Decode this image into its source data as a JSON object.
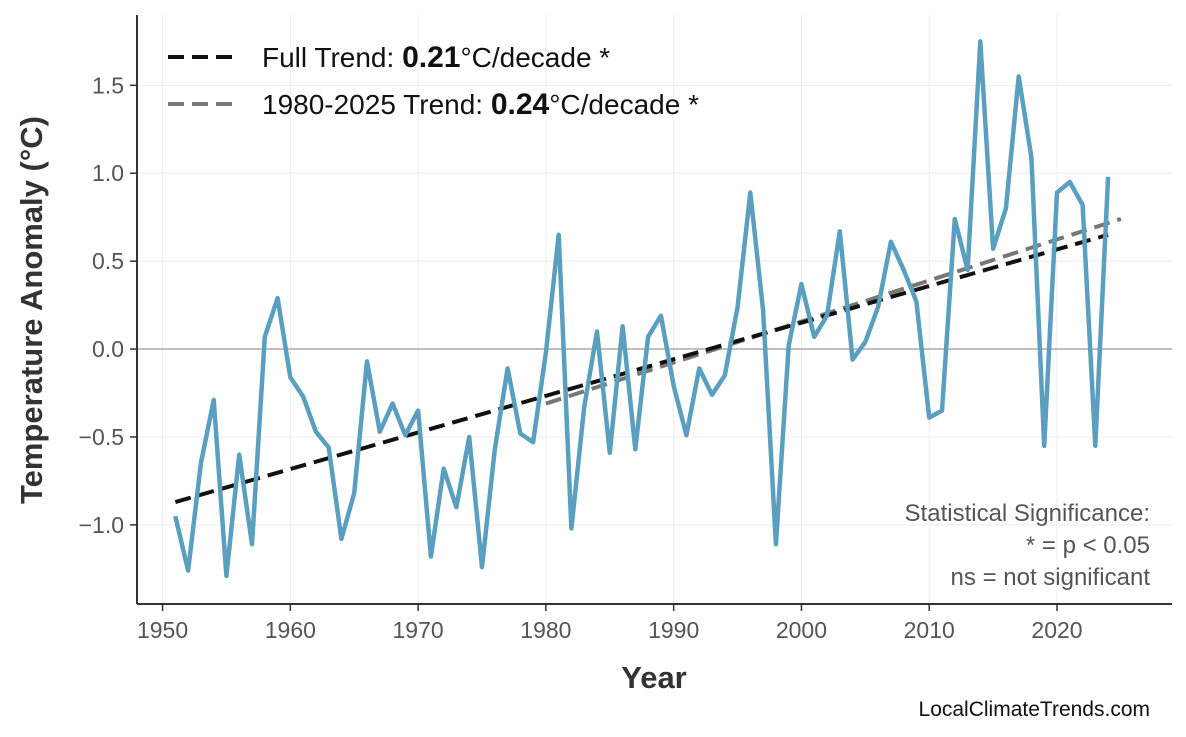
{
  "chart_data": {
    "type": "line",
    "xlabel": "Year",
    "ylabel": "Temperature Anomaly (°C)",
    "xlim": [
      1948,
      2029
    ],
    "ylim": [
      -1.45,
      1.9
    ],
    "xticks": [
      1950,
      1960,
      1970,
      1980,
      1990,
      2000,
      2010,
      2020
    ],
    "yticks": [
      -1.0,
      -0.5,
      0.0,
      0.5,
      1.0,
      1.5
    ],
    "ytick_labels": [
      "−1.0",
      "−0.5",
      "0.0",
      "0.5",
      "1.0",
      "1.5"
    ],
    "grid": true,
    "zero_line": true,
    "legend_placement": "top-left",
    "series": {
      "color": "#5a9fc0",
      "x": [
        1951,
        1952,
        1953,
        1954,
        1955,
        1956,
        1957,
        1958,
        1959,
        1960,
        1961,
        1962,
        1963,
        1964,
        1965,
        1966,
        1967,
        1968,
        1969,
        1970,
        1971,
        1972,
        1973,
        1974,
        1975,
        1976,
        1977,
        1978,
        1979,
        1980,
        1981,
        1982,
        1983,
        1984,
        1985,
        1986,
        1987,
        1988,
        1989,
        1990,
        1991,
        1992,
        1993,
        1994,
        1995,
        1996,
        1997,
        1998,
        1999,
        2000,
        2001,
        2002,
        2003,
        2004,
        2005,
        2006,
        2007,
        2008,
        2009,
        2010,
        2011,
        2012,
        2013,
        2014,
        2015,
        2016,
        2017,
        2018,
        2019,
        2020,
        2021,
        2022,
        2023,
        2024
      ],
      "y": [
        -0.95,
        -1.26,
        -0.65,
        -0.29,
        -1.29,
        -0.6,
        -1.11,
        0.07,
        0.29,
        -0.16,
        -0.27,
        -0.47,
        -0.56,
        -1.08,
        -0.82,
        -0.07,
        -0.47,
        -0.31,
        -0.49,
        -0.35,
        -1.18,
        -0.68,
        -0.9,
        -0.5,
        -1.24,
        -0.57,
        -0.11,
        -0.48,
        -0.53,
        -0.02,
        0.65,
        -1.02,
        -0.33,
        0.1,
        -0.59,
        0.13,
        -0.57,
        0.07,
        0.19,
        -0.21,
        -0.49,
        -0.11,
        -0.26,
        -0.15,
        0.24,
        0.89,
        0.22,
        -1.11,
        0.02,
        0.37,
        0.07,
        0.19,
        0.67,
        -0.06,
        0.04,
        0.24,
        0.61,
        0.45,
        0.27,
        -0.39,
        -0.35,
        0.74,
        0.45,
        1.75,
        0.57,
        0.8,
        1.55,
        1.09,
        -0.55,
        0.89,
        0.95,
        0.82,
        -0.55,
        0.98
      ]
    },
    "trends": [
      {
        "label_prefix": "Full Trend: ",
        "value": "0.21",
        "label_suffix": "°C/decade *",
        "color": "#111111",
        "x": [
          1951,
          2024
        ],
        "y": [
          -0.87,
          0.65
        ]
      },
      {
        "label_prefix": "1980-2025 Trend: ",
        "value": "0.24",
        "label_suffix": "°C/decade *",
        "color": "#777777",
        "x": [
          1980,
          2025
        ],
        "y": [
          -0.31,
          0.74
        ]
      }
    ],
    "annotation": [
      "Statistical Significance:",
      "* = p < 0.05",
      "ns = not significant"
    ],
    "watermark": "LocalClimateTrends.com"
  }
}
